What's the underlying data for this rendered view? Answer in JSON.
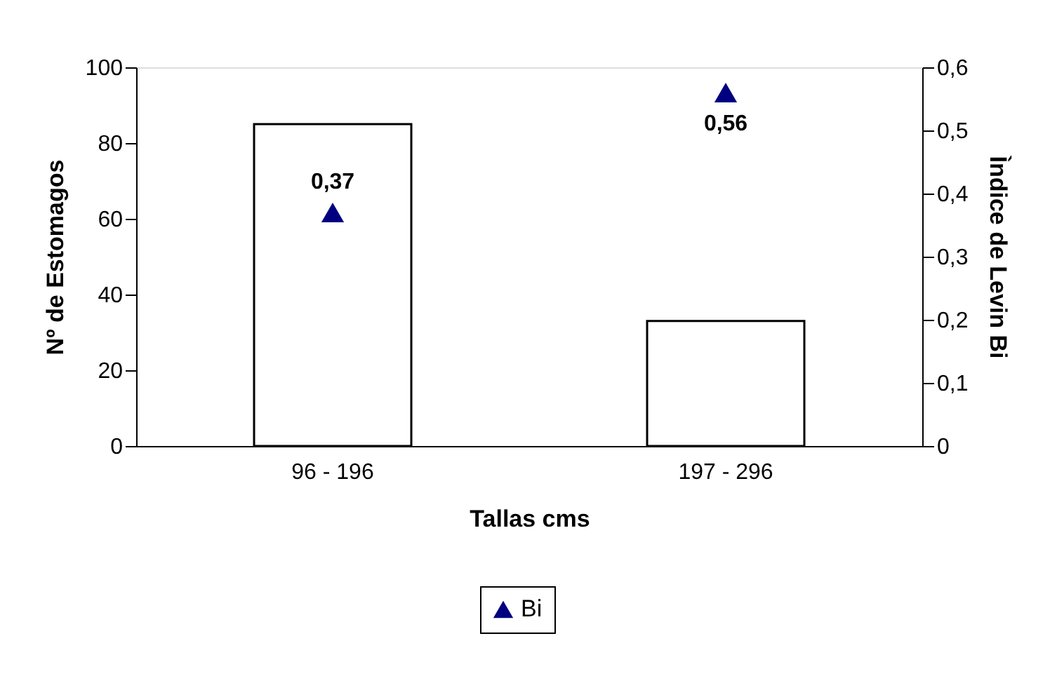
{
  "chart_data": {
    "type": "bar",
    "xlabel": "Tallas cms",
    "ylabel": "Nº de Estomagos",
    "y2label": "Ìndice de Levin Bi",
    "categories": [
      "96 - 196",
      "197 - 296"
    ],
    "series": [
      {
        "color": "#ffffff",
        "values": [
          85,
          33
        ]
      },
      {
        "type": "scatter",
        "name": "Bi",
        "axis": "y2",
        "color": "#000080",
        "marker": "triangle",
        "values": [
          0.37,
          0.56
        ],
        "value_labels": [
          "0,37",
          "0,56"
        ]
      }
    ],
    "ylim": [
      0,
      100
    ],
    "yticks": [
      0,
      20,
      40,
      60,
      80,
      100
    ],
    "y2lim": [
      0,
      0.6
    ],
    "y2ticks": [
      {
        "value": 0,
        "label": "0"
      },
      {
        "value": 0.1,
        "label": "0,1"
      },
      {
        "value": 0.2,
        "label": "0,2"
      },
      {
        "value": 0.3,
        "label": "0,3"
      },
      {
        "value": 0.4,
        "label": "0,4"
      },
      {
        "value": 0.5,
        "label": "0,5"
      },
      {
        "value": 0.6,
        "label": "0,6"
      }
    ],
    "grid": false,
    "legend": "bottom"
  }
}
